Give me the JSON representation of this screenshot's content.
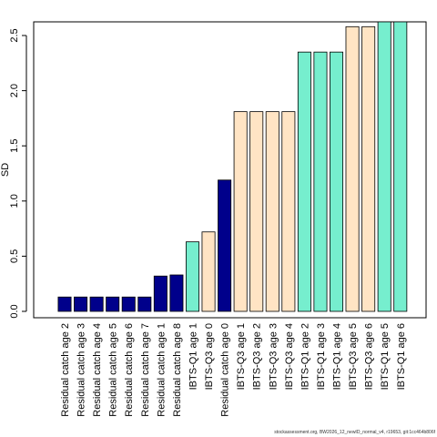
{
  "chart_data": {
    "type": "bar",
    "ylabel": "SD",
    "ylim": [
      0,
      2.62
    ],
    "yticks": [
      "0.0",
      "0.5",
      "1.0",
      "1.5",
      "2.0",
      "2.5"
    ],
    "ytick_values": [
      0,
      0.5,
      1.0,
      1.5,
      2.0,
      2.5
    ],
    "categories": [
      "Residual catch age 2",
      "Residual catch age 3",
      "Residual catch age 4",
      "Residual catch age 5",
      "Residual catch age 6",
      "Residual catch age 7",
      "Residual catch age 1",
      "Residual catch age 8",
      "IBTS-Q1 age 1",
      "IBTS-Q3 age 0",
      "Residual catch age 0",
      "IBTS-Q3 age 1",
      "IBTS-Q3 age 2",
      "IBTS-Q3 age 3",
      "IBTS-Q3 age 4",
      "IBTS-Q1 age 2",
      "IBTS-Q1 age 3",
      "IBTS-Q1 age 4",
      "IBTS-Q3 age 5",
      "IBTS-Q3 age 6",
      "IBTS-Q1 age 5",
      "IBTS-Q1 age 6"
    ],
    "values": [
      0.13,
      0.13,
      0.13,
      0.13,
      0.13,
      0.13,
      0.32,
      0.33,
      0.63,
      0.72,
      1.19,
      1.81,
      1.81,
      1.81,
      1.81,
      2.35,
      2.35,
      2.35,
      2.58,
      2.58,
      2.63,
      2.63
    ],
    "bar_groups": [
      "residual",
      "residual",
      "residual",
      "residual",
      "residual",
      "residual",
      "residual",
      "residual",
      "q1",
      "q3",
      "residual",
      "q3",
      "q3",
      "q3",
      "q3",
      "q1",
      "q1",
      "q1",
      "q3",
      "q3",
      "q1",
      "q1"
    ],
    "colors": {
      "residual": "#00008B",
      "q1": "#76EECE",
      "q3": "#FFE4C4",
      "bar_border": "#000000"
    },
    "grid": false
  },
  "footer": {
    "text": "stockassessment.org, BW2026_12_newID_normal_v4, r19653, git:1cc464b806f"
  }
}
